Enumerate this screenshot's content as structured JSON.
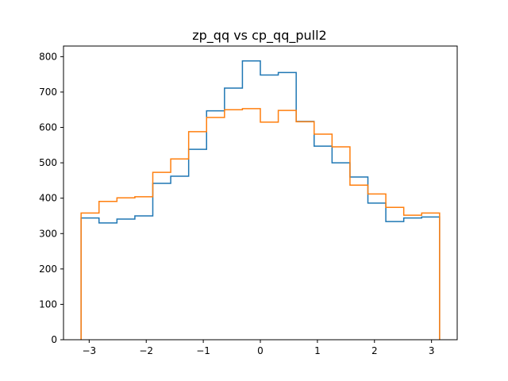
{
  "chart_data": {
    "type": "histogram",
    "title": "zp_qq vs cp_qq_pull2",
    "xlabel": "",
    "ylabel": "",
    "xlim": [
      -3.45,
      3.45
    ],
    "ylim": [
      0,
      830
    ],
    "xticks": [
      -3,
      -2,
      -1,
      0,
      1,
      2,
      3
    ],
    "xtick_labels": [
      "−3",
      "−2",
      "−1",
      "0",
      "1",
      "2",
      "3"
    ],
    "yticks": [
      0,
      100,
      200,
      300,
      400,
      500,
      600,
      700,
      800
    ],
    "ytick_labels": [
      "0",
      "100",
      "200",
      "300",
      "400",
      "500",
      "600",
      "700",
      "800"
    ],
    "bin_edges": [
      -3.1416,
      -2.8274,
      -2.5133,
      -2.1991,
      -1.885,
      -1.5708,
      -1.2566,
      -0.9425,
      -0.6283,
      -0.3142,
      0.0,
      0.3142,
      0.6283,
      0.9425,
      1.2566,
      1.5708,
      1.885,
      2.1991,
      2.5133,
      2.8274,
      3.1416
    ],
    "series": [
      {
        "color": "#1f77b4",
        "values": [
          344,
          330,
          341,
          350,
          442,
          462,
          538,
          647,
          711,
          788,
          748,
          755,
          617,
          547,
          500,
          460,
          386,
          334,
          344,
          347
        ]
      },
      {
        "color": "#ff7f0e",
        "values": [
          358,
          391,
          401,
          404,
          473,
          511,
          588,
          628,
          650,
          653,
          615,
          648,
          616,
          581,
          545,
          437,
          412,
          374,
          352,
          358
        ]
      }
    ]
  }
}
